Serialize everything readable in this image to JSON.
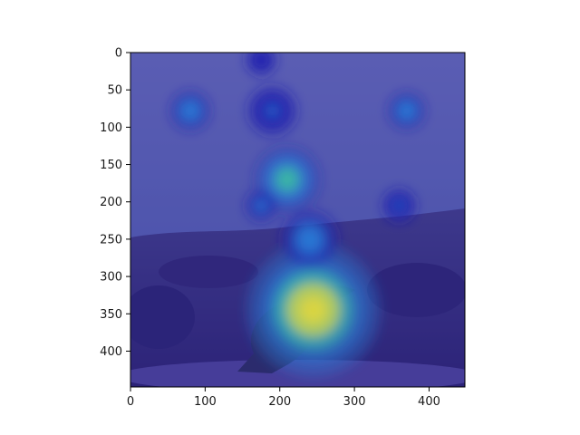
{
  "chart_data": {
    "type": "heatmap",
    "title": "",
    "xlabel": "",
    "ylabel": "",
    "xlim": [
      0,
      448
    ],
    "ylim": [
      448,
      0
    ],
    "x_ticks": [
      0,
      100,
      200,
      300,
      400
    ],
    "y_ticks": [
      0,
      50,
      100,
      150,
      200,
      250,
      300,
      350,
      400
    ],
    "x_tick_labels": [
      "0",
      "100",
      "200",
      "300",
      "400"
    ],
    "y_tick_labels": [
      "0",
      "50",
      "100",
      "150",
      "200",
      "250",
      "300",
      "350",
      "400"
    ],
    "colormap": "jet",
    "hotspots": [
      {
        "x": 240,
        "y": 340,
        "intensity": 1.0,
        "radius": 55
      },
      {
        "x": 245,
        "y": 345,
        "intensity": 0.85,
        "radius": 90
      },
      {
        "x": 210,
        "y": 170,
        "intensity": 0.55,
        "radius": 45
      },
      {
        "x": 240,
        "y": 250,
        "intensity": 0.45,
        "radius": 40
      },
      {
        "x": 80,
        "y": 78,
        "intensity": 0.4,
        "radius": 28
      },
      {
        "x": 370,
        "y": 78,
        "intensity": 0.38,
        "radius": 26
      },
      {
        "x": 190,
        "y": 78,
        "intensity": 0.28,
        "radius": 35
      },
      {
        "x": 175,
        "y": 205,
        "intensity": 0.3,
        "radius": 22
      },
      {
        "x": 360,
        "y": 205,
        "intensity": 0.28,
        "radius": 24
      },
      {
        "x": 175,
        "y": 10,
        "intensity": 0.22,
        "radius": 22
      }
    ],
    "scene": {
      "sky_color": "#7d8aa8",
      "ground_color": "#4a3a52",
      "bird_color": "#3a3630"
    },
    "colors": {
      "cold": "#2020b0",
      "cool": "#2a7fd8",
      "mid": "#3cc0a0",
      "warm": "#e6d83a",
      "hot": "#d42a1c"
    }
  }
}
